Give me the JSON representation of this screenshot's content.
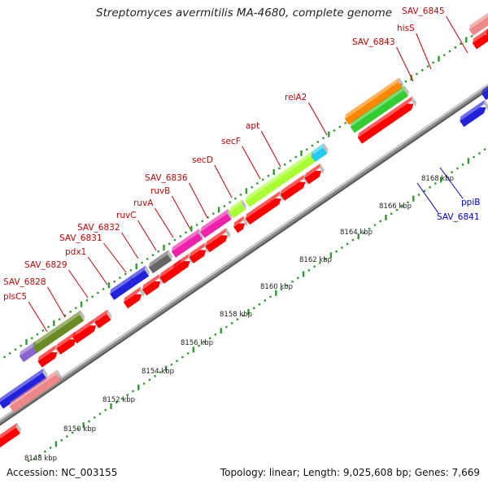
{
  "title": "Streptomyces avermitilis MA-4680, complete genome",
  "footer": {
    "accession": "Accession: NC_003155",
    "summary": "Topology: linear; Length: 9,025,608 bp; Genes: 7,669"
  },
  "colors": {
    "label_top": "#cc0000",
    "label_bottom": "#0000cc",
    "backbone": "#8c8c8c",
    "tick": "#2e9a2e",
    "cds": "#ff0000"
  },
  "scale_labels": [
    "8148 kbp",
    "8150 kbp",
    "8152 kbp",
    "8154 kbp",
    "8156 kbp",
    "8158 kbp",
    "8160 kbp",
    "8162 kbp",
    "8164 kbp",
    "8166 kbp",
    "8168 kbp"
  ],
  "top_gene_labels": [
    "plsC5",
    "SAV_6828",
    "SAV_6829",
    "pdx1",
    "SAV_6831",
    "SAV_6832",
    "ruvC",
    "ruvA",
    "ruvB",
    "SAV_6836",
    "secD",
    "secF",
    "apt",
    "relA2",
    "SAV_6843",
    "hisS",
    "SAV_6845"
  ],
  "bottom_gene_labels": [
    "SAV_6841",
    "ppiB"
  ]
}
